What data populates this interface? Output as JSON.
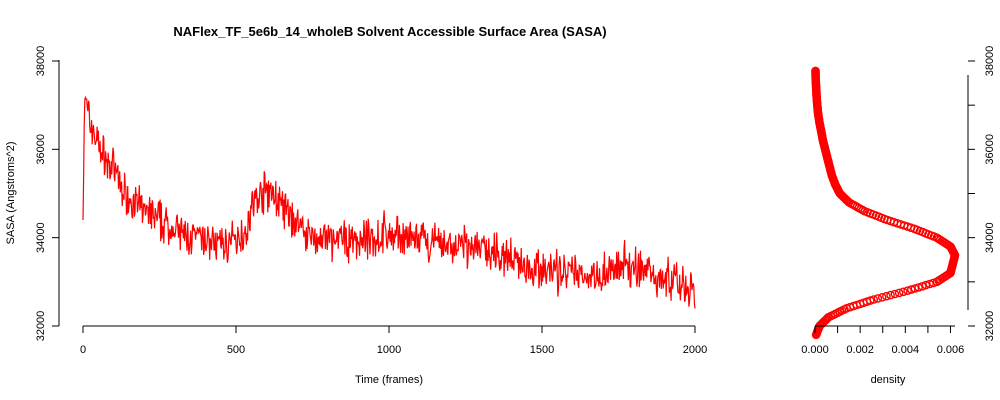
{
  "chart_data": [
    {
      "type": "line",
      "title": "NAFlex_TF_5e6b_14_wholeB Solvent Accessible Surface Area (SASA)",
      "xlabel": "Time (frames)",
      "ylabel": "SASA (Angstroms^2)",
      "xlim": [
        0,
        2000
      ],
      "ylim": [
        32000,
        38000
      ],
      "x_ticks": [
        "0",
        "500",
        "1000",
        "1500",
        "2000"
      ],
      "y_ticks": [
        "32000",
        "34000",
        "36000",
        "38000"
      ],
      "grid": false,
      "color": "#ff0000",
      "series": [
        {
          "x": [
            0,
            5,
            10,
            15,
            25,
            40,
            60,
            80,
            100,
            120,
            150,
            180,
            200,
            230,
            260,
            300,
            350,
            400,
            450,
            500,
            530,
            560,
            600,
            630,
            660,
            700,
            750,
            800,
            850,
            900,
            950,
            1000,
            1050,
            1100,
            1150,
            1200,
            1250,
            1300,
            1350,
            1400,
            1450,
            1500,
            1550,
            1600,
            1650,
            1700,
            1750,
            1800,
            1850,
            1900,
            1950,
            1990,
            2000
          ],
          "y": [
            34400,
            37200,
            37000,
            36800,
            36600,
            36300,
            36000,
            35700,
            35500,
            35200,
            34900,
            34700,
            34600,
            34500,
            34350,
            34150,
            34000,
            33900,
            33850,
            33900,
            34200,
            34800,
            35100,
            34900,
            34600,
            34300,
            34000,
            33900,
            33950,
            33950,
            34000,
            34050,
            34000,
            33900,
            33850,
            33800,
            33800,
            33750,
            33650,
            33500,
            33400,
            33300,
            33200,
            33150,
            33150,
            33200,
            33300,
            33350,
            33250,
            33100,
            33000,
            32800,
            32700
          ]
        }
      ]
    },
    {
      "type": "line",
      "title": "",
      "xlabel": "density",
      "ylabel": "",
      "xlim": [
        0,
        0.0062
      ],
      "ylim": [
        32000,
        38000
      ],
      "x_ticks": [
        "0.000",
        "0.002",
        "0.004",
        "0.006"
      ],
      "y_ticks": [
        "32000",
        "34000",
        "36000",
        "38000"
      ],
      "grid": false,
      "color": "#ff0000",
      "series": [
        {
          "y": [
            31800,
            32000,
            32200,
            32400,
            32600,
            32800,
            33000,
            33200,
            33400,
            33600,
            33800,
            34000,
            34200,
            34400,
            34600,
            34800,
            35000,
            35200,
            35400,
            35600,
            35800,
            36000,
            36200,
            36400,
            36600,
            36800,
            37000,
            37200,
            37400,
            37600,
            37800
          ],
          "x": [
            5e-05,
            0.0002,
            0.0006,
            0.0014,
            0.0026,
            0.0041,
            0.0054,
            0.006,
            0.0061,
            0.0062,
            0.006,
            0.0054,
            0.0044,
            0.0032,
            0.0022,
            0.0015,
            0.0011,
            0.0009,
            0.00075,
            0.00065,
            0.00055,
            0.00045,
            0.00035,
            0.00028,
            0.0002,
            0.00014,
            0.0001,
            7e-05,
            5e-05,
            3e-05,
            2e-05
          ]
        }
      ]
    }
  ]
}
